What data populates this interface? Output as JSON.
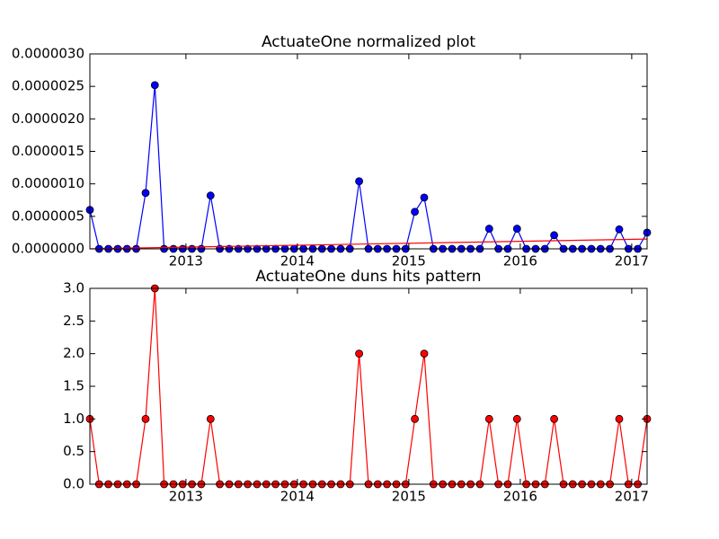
{
  "chart_data": [
    {
      "type": "line",
      "title": "ActuateOne normalized plot",
      "x": [
        2012.138,
        2012.221,
        2012.304,
        2012.388,
        2012.471,
        2012.554,
        2012.638,
        2012.721,
        2012.804,
        2012.888,
        2012.971,
        2013.054,
        2013.138,
        2013.221,
        2013.304,
        2013.388,
        2013.471,
        2013.554,
        2013.638,
        2013.721,
        2013.804,
        2013.888,
        2013.971,
        2014.054,
        2014.138,
        2014.221,
        2014.304,
        2014.388,
        2014.471,
        2014.554,
        2014.638,
        2014.721,
        2014.804,
        2014.888,
        2014.971,
        2015.054,
        2015.138,
        2015.221,
        2015.304,
        2015.388,
        2015.471,
        2015.554,
        2015.638,
        2015.721,
        2015.804,
        2015.888,
        2015.971,
        2016.054,
        2016.138,
        2016.221,
        2016.304,
        2016.388,
        2016.471,
        2016.554,
        2016.638,
        2016.721,
        2016.804,
        2016.888,
        2016.971,
        2017.054,
        2017.138
      ],
      "series": [
        {
          "color": "#0000ff",
          "marker": true,
          "values": [
            6e-07,
            0,
            0,
            0,
            0,
            0,
            8.6e-07,
            2.52e-06,
            0,
            0,
            0,
            0,
            0,
            8.2e-07,
            0,
            0,
            0,
            0,
            0,
            0,
            0,
            0,
            0,
            0,
            0,
            0,
            0,
            0,
            0,
            1.04e-06,
            0,
            0,
            0,
            0,
            0,
            5.7e-07,
            7.9e-07,
            0,
            0,
            0,
            0,
            0,
            0,
            3.1e-07,
            0,
            0,
            3.1e-07,
            0,
            0,
            0,
            2.1e-07,
            0,
            0,
            0,
            0,
            0,
            0,
            3e-07,
            0,
            0,
            2.5e-07
          ]
        },
        {
          "color": "#ff0000",
          "marker": false,
          "x": [
            2012.138,
            2017.138
          ],
          "values": [
            0,
            1.5e-07
          ]
        }
      ],
      "xlim": [
        2012.138,
        2017.138
      ],
      "xticks": [
        2013,
        2014,
        2015,
        2016,
        2017
      ],
      "ylim": [
        0,
        3e-06
      ],
      "yticks": [
        {
          "value": 0,
          "label": "0.0000000"
        },
        {
          "value": 5e-07,
          "label": "0.0000005"
        },
        {
          "value": 1e-06,
          "label": "0.0000010"
        },
        {
          "value": 1.5e-06,
          "label": "0.0000015"
        },
        {
          "value": 2e-06,
          "label": "0.0000020"
        },
        {
          "value": 2.5e-06,
          "label": "0.0000025"
        },
        {
          "value": 3e-06,
          "label": "0.0000030"
        }
      ]
    },
    {
      "type": "line",
      "title": "ActuateOne duns hits pattern",
      "x": [
        2012.138,
        2012.221,
        2012.304,
        2012.388,
        2012.471,
        2012.554,
        2012.638,
        2012.721,
        2012.804,
        2012.888,
        2012.971,
        2013.054,
        2013.138,
        2013.221,
        2013.304,
        2013.388,
        2013.471,
        2013.554,
        2013.638,
        2013.721,
        2013.804,
        2013.888,
        2013.971,
        2014.054,
        2014.138,
        2014.221,
        2014.304,
        2014.388,
        2014.471,
        2014.554,
        2014.638,
        2014.721,
        2014.804,
        2014.888,
        2014.971,
        2015.054,
        2015.138,
        2015.221,
        2015.304,
        2015.388,
        2015.471,
        2015.554,
        2015.638,
        2015.721,
        2015.804,
        2015.888,
        2015.971,
        2016.054,
        2016.138,
        2016.221,
        2016.304,
        2016.388,
        2016.471,
        2016.554,
        2016.638,
        2016.721,
        2016.804,
        2016.888,
        2016.971,
        2017.054,
        2017.138
      ],
      "series": [
        {
          "color": "#ff0000",
          "marker": true,
          "values": [
            1,
            0,
            0,
            0,
            0,
            0,
            1,
            3,
            0,
            0,
            0,
            0,
            0,
            1,
            0,
            0,
            0,
            0,
            0,
            0,
            0,
            0,
            0,
            0,
            0,
            0,
            0,
            0,
            0,
            2,
            0,
            0,
            0,
            0,
            0,
            1,
            2,
            0,
            0,
            0,
            0,
            0,
            0,
            1,
            0,
            0,
            1,
            0,
            0,
            0,
            1,
            0,
            0,
            0,
            0,
            0,
            0,
            1,
            0,
            0,
            1
          ]
        }
      ],
      "xlim": [
        2012.138,
        2017.138
      ],
      "xticks": [
        2013,
        2014,
        2015,
        2016,
        2017
      ],
      "ylim": [
        0,
        3
      ],
      "yticks": [
        {
          "value": 0,
          "label": "0.0"
        },
        {
          "value": 0.5,
          "label": "0.5"
        },
        {
          "value": 1,
          "label": "1.0"
        },
        {
          "value": 1.5,
          "label": "1.5"
        },
        {
          "value": 2,
          "label": "2.0"
        },
        {
          "value": 2.5,
          "label": "2.5"
        },
        {
          "value": 3,
          "label": "3.0"
        }
      ]
    }
  ]
}
